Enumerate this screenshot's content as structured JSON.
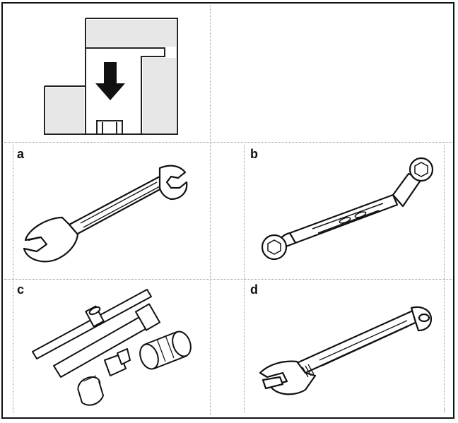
{
  "panels": [
    {
      "letter": "a",
      "icon": "open-end-wrench"
    },
    {
      "letter": "b",
      "icon": "offset-ring-wrench"
    },
    {
      "letter": "c",
      "icon": "socket-wrench-set"
    },
    {
      "letter": "d",
      "icon": "adjustable-wrench"
    }
  ],
  "top_panel": {
    "icon": "down-arrow-into-nut-slot"
  },
  "corner_mark": "·"
}
